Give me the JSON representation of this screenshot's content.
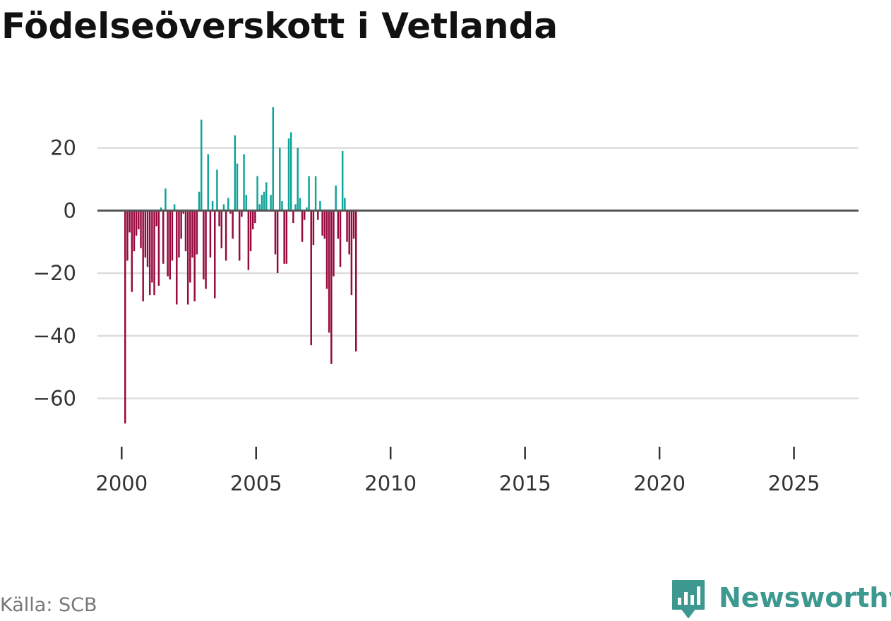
{
  "title": "Födelseöverskott i Vetlanda",
  "source": "Källa: SCB",
  "brand": {
    "name": "Newsworthy"
  },
  "colors": {
    "positive": "#0fa39a",
    "negative": "#960a3d",
    "grid": "#dddddd",
    "zero": "#555555",
    "brand": "#3d9990"
  },
  "chart_data": {
    "type": "bar",
    "title": "Födelseöverskott i Vetlanda",
    "xlabel": "",
    "ylabel": "",
    "ylim": [
      -70,
      35
    ],
    "xlim": [
      1999.1,
      2027.4
    ],
    "yticks": [
      20,
      0,
      -20,
      -40,
      -60
    ],
    "ytick_labels": [
      "20",
      "0",
      "−20",
      "−40",
      "−60"
    ],
    "xticks": [
      2000,
      2005,
      2010,
      2015,
      2020,
      2025
    ],
    "xtick_labels": [
      "2000",
      "2005",
      "2010",
      "2015",
      "2020",
      "2025"
    ],
    "frequency": "monthly, one bar per month starting January 2000",
    "values": [
      -68,
      -16,
      -7,
      -26,
      -13,
      -8,
      -6,
      -12,
      -29,
      -15,
      -18,
      -27,
      -23,
      -27,
      -5,
      -24,
      1,
      -17,
      7,
      -21,
      -22,
      -16,
      2,
      -30,
      -15,
      -9,
      -1,
      -13,
      -30,
      -23,
      -15,
      -29,
      -14,
      6,
      29,
      -22,
      -25,
      18,
      -15,
      3,
      -28,
      13,
      -5,
      -12,
      2,
      -16,
      4,
      -1,
      -9,
      24,
      15,
      -16,
      -2,
      18,
      5,
      -19,
      -13,
      -6,
      -4,
      11,
      2,
      5,
      6,
      9,
      0,
      5,
      33,
      -14,
      -20,
      20,
      3,
      -17,
      -17,
      23,
      25,
      -4,
      2,
      20,
      4,
      -10,
      -3,
      1,
      11,
      -43,
      -11,
      11,
      -3,
      3,
      -8,
      -9,
      -25,
      -39,
      -49,
      -21,
      8,
      -9,
      -18,
      19,
      4,
      -10,
      -14,
      -27,
      -9,
      -45
    ]
  }
}
